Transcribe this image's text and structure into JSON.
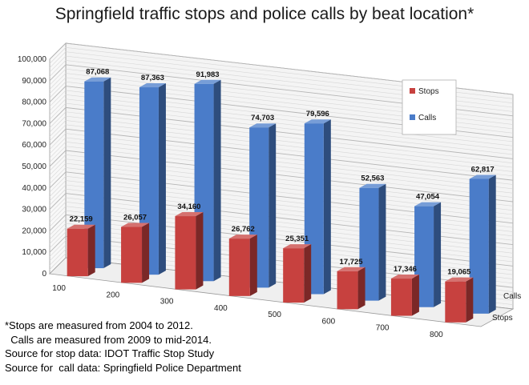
{
  "chart_data": {
    "type": "bar",
    "title": "Springfield traffic stops and police calls by beat location*",
    "categories": [
      "100",
      "200",
      "300",
      "400",
      "500",
      "600",
      "700",
      "800"
    ],
    "series": [
      {
        "name": "Calls",
        "values": [
          87068,
          87363,
          91983,
          74703,
          79596,
          52563,
          47054,
          62817
        ],
        "color": "#4a7cc9"
      },
      {
        "name": "Stops",
        "values": [
          22159,
          26057,
          34160,
          26762,
          25351,
          17725,
          17346,
          19065
        ],
        "color": "#c7413f"
      }
    ],
    "data_labels": {
      "Calls": [
        "87,068",
        "87,363",
        "91,983",
        "74,703",
        "79,596",
        "52,563",
        "47,054",
        "62,817"
      ],
      "Stops": [
        "22,159",
        "26,057",
        "34,160",
        "26,762",
        "25,351",
        "17,725",
        "17,346",
        "19,065"
      ]
    },
    "yticks": [
      "0",
      "10,000",
      "20,000",
      "30,000",
      "40,000",
      "50,000",
      "60,000",
      "70,000",
      "80,000",
      "90,000",
      "100,000"
    ],
    "ylim": [
      0,
      100000
    ],
    "depth_labels": [
      "Calls",
      "Stops"
    ],
    "legend": [
      "Stops",
      "Calls"
    ],
    "legend_position": "top-right",
    "grid": true,
    "three_d": true
  },
  "notes": [
    "*Stops are measured from 2004 to 2012.",
    "  Calls are measured from 2009 to mid-2014.",
    "Source for stop data: IDOT Traffic Stop Study",
    "Source for  call data: Springfield Police Department"
  ]
}
